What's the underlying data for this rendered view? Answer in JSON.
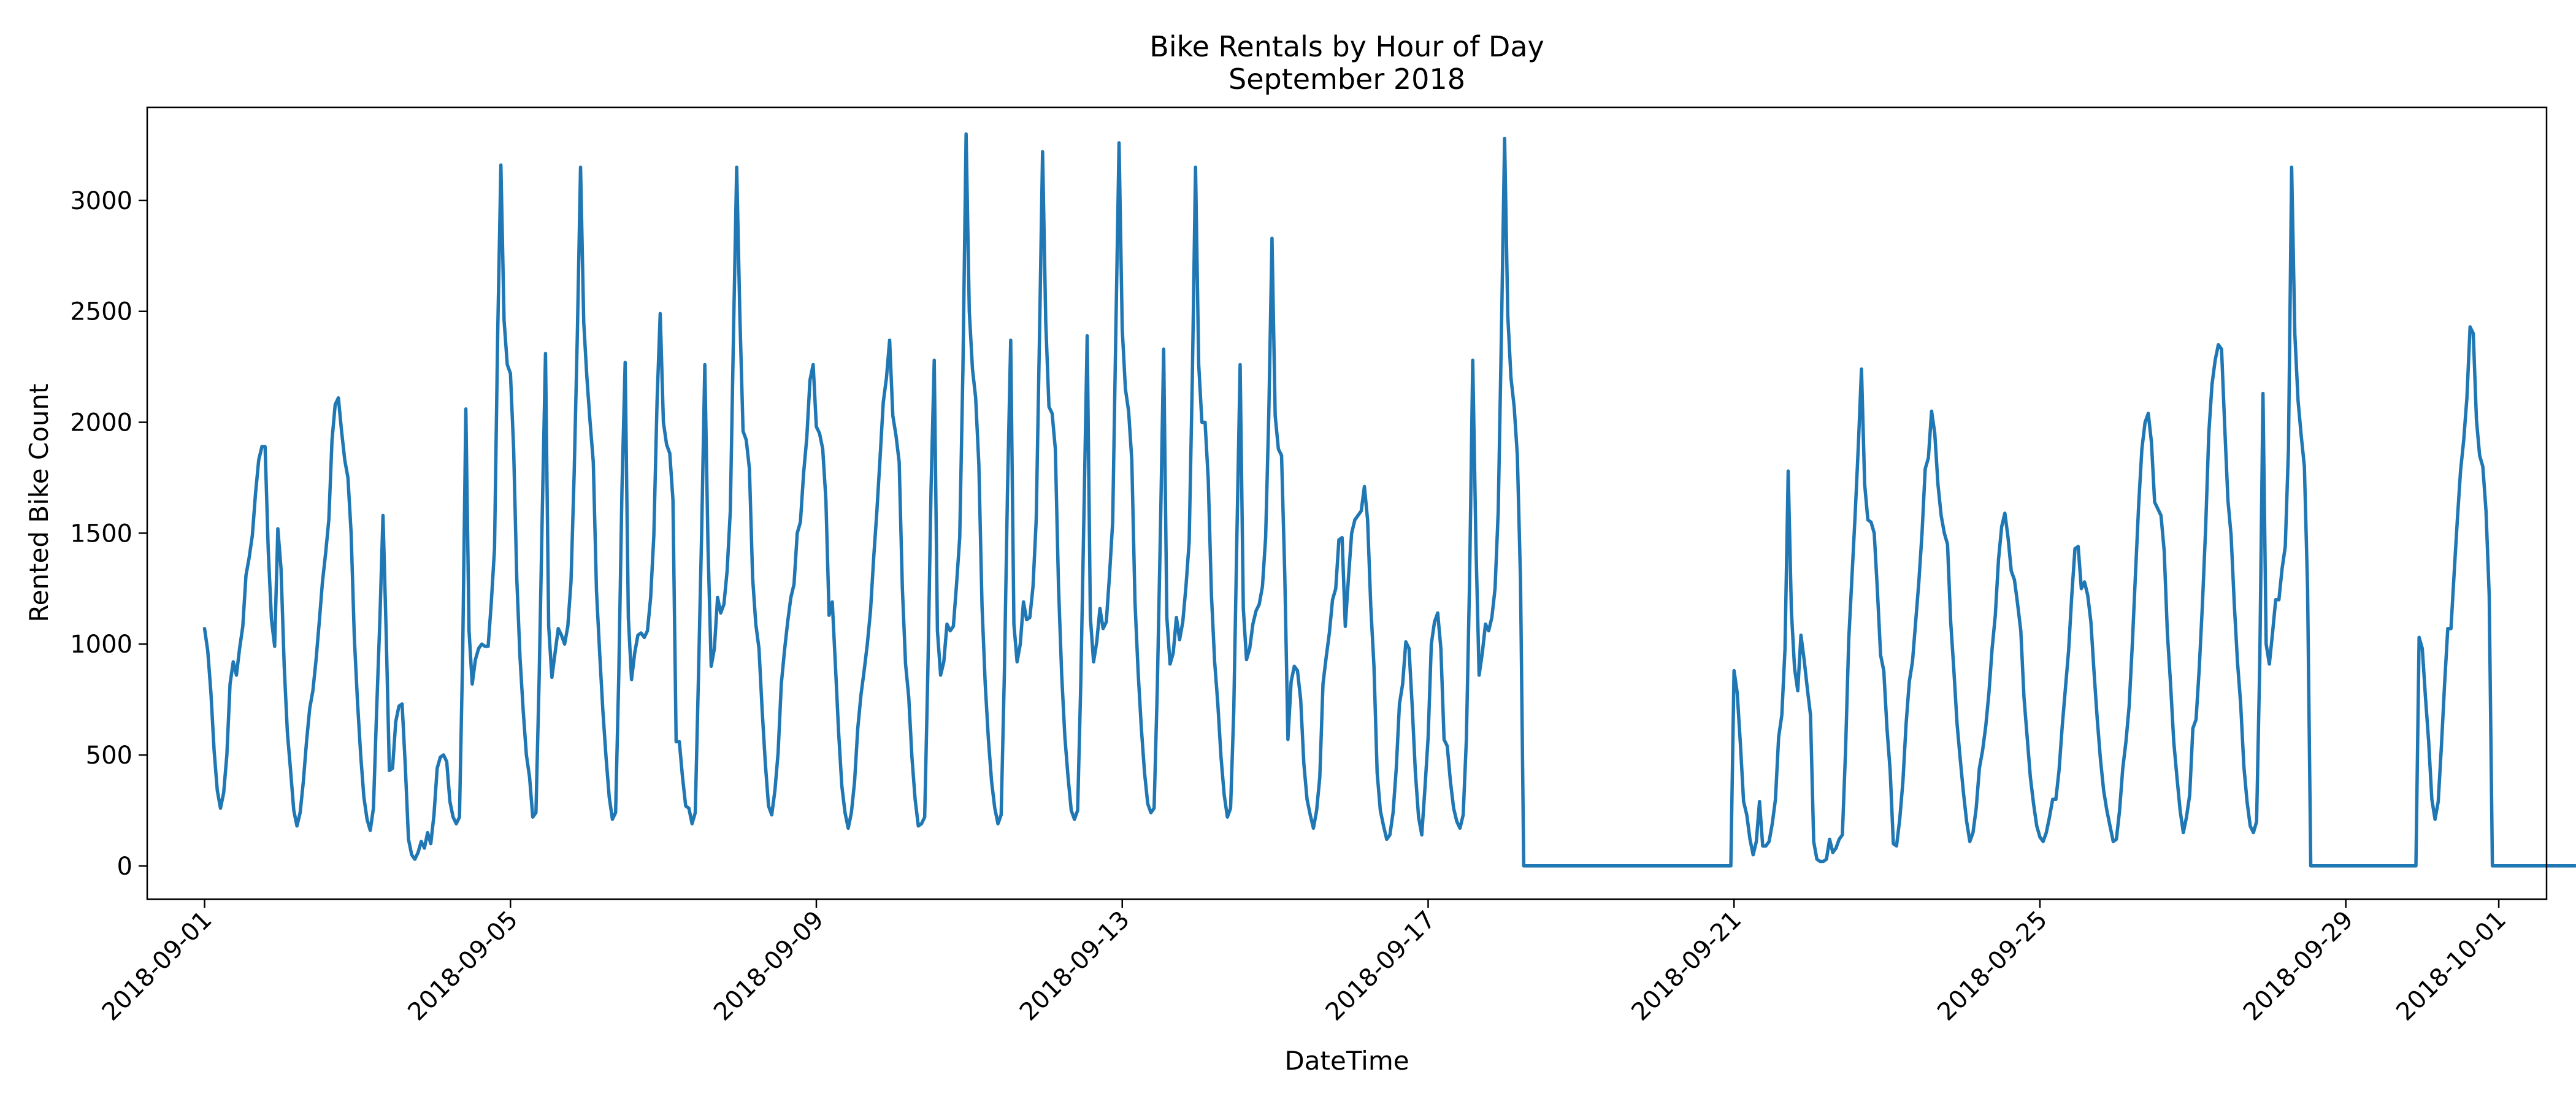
{
  "chart_data": {
    "type": "line",
    "title": "Bike Rentals by Hour of Day",
    "subtitle": "September 2018",
    "xlabel": "DateTime",
    "ylabel": "Rented Bike Count",
    "x_range": [
      "2018-08-31T06:00",
      "2018-10-01T15:00"
    ],
    "ylim": [
      -150,
      3420
    ],
    "x_ticks": [
      "2018-09-01",
      "2018-09-05",
      "2018-09-09",
      "2018-09-13",
      "2018-09-17",
      "2018-09-21",
      "2018-09-25",
      "2018-09-29",
      "2018-10-01"
    ],
    "y_ticks": [
      0,
      500,
      1000,
      1500,
      2000,
      2500,
      3000
    ],
    "grid": false,
    "legend": "none",
    "line_color": "#1f77b4",
    "series": [
      {
        "x_start": "2018-09-01T00:00",
        "interval_hours": 1,
        "values": [
          1070,
          970,
          780,
          520,
          340,
          260,
          330,
          500,
          820,
          920,
          860,
          980,
          1080,
          1310,
          1390,
          1490,
          1680,
          1830,
          1890,
          1890,
          1420,
          1110,
          990,
          1520,
          1340,
          900,
          600,
          430,
          250,
          180,
          240,
          380,
          560,
          710,
          790,
          930,
          1100,
          1280,
          1410,
          1560,
          1920,
          2080,
          2110,
          1960,
          1830,
          1750,
          1500,
          1030,
          740,
          500,
          310,
          210,
          160,
          260,
          700,
          1100,
          1580,
          1050,
          430,
          440,
          650,
          720,
          730,
          450,
          120,
          50,
          30,
          60,
          110,
          80,
          150,
          100,
          230,
          440,
          490,
          500,
          470,
          290,
          220,
          190,
          220,
          950,
          2060,
          1060,
          820,
          930,
          980,
          1000,
          990,
          990,
          1190,
          1430,
          2400,
          3160,
          2460,
          2260,
          2220,
          1880,
          1290,
          940,
          700,
          500,
          400,
          220,
          240,
          840,
          1600,
          2310,
          1080,
          850,
          960,
          1070,
          1040,
          1000,
          1080,
          1280,
          1770,
          2400,
          3150,
          2450,
          2200,
          2000,
          1820,
          1240,
          960,
          700,
          490,
          310,
          210,
          240,
          860,
          1700,
          2270,
          1120,
          840,
          960,
          1040,
          1050,
          1030,
          1060,
          1210,
          1490,
          2090,
          2490,
          2000,
          1900,
          1860,
          1650,
          560,
          560,
          400,
          270,
          260,
          190,
          240,
          850,
          1500,
          2260,
          1440,
          900,
          980,
          1210,
          1140,
          1180,
          1330,
          1600,
          2400,
          3150,
          2480,
          1960,
          1920,
          1790,
          1300,
          1090,
          980,
          700,
          460,
          270,
          230,
          340,
          510,
          820,
          970,
          1100,
          1210,
          1270,
          1500,
          1550,
          1770,
          1930,
          2190,
          2260,
          1980,
          1950,
          1880,
          1650,
          1130,
          1190,
          900,
          600,
          360,
          240,
          170,
          240,
          380,
          620,
          770,
          880,
          1000,
          1150,
          1390,
          1600,
          1840,
          2090,
          2200,
          2370,
          2030,
          1940,
          1820,
          1250,
          910,
          760,
          490,
          300,
          180,
          190,
          220,
          880,
          1700,
          2280,
          1060,
          860,
          920,
          1090,
          1060,
          1080,
          1270,
          1480,
          2240,
          3300,
          2500,
          2240,
          2110,
          1810,
          1170,
          820,
          570,
          380,
          260,
          190,
          230,
          860,
          1700,
          2370,
          1090,
          920,
          1000,
          1190,
          1110,
          1120,
          1260,
          1560,
          2360,
          3220,
          2450,
          2070,
          2040,
          1880,
          1260,
          860,
          580,
          400,
          250,
          210,
          250,
          830,
          1600,
          2390,
          1120,
          920,
          1010,
          1160,
          1070,
          1100,
          1310,
          1550,
          2420,
          3260,
          2420,
          2150,
          2050,
          1830,
          1190,
          870,
          620,
          420,
          280,
          240,
          260,
          800,
          1520,
          2330,
          1120,
          910,
          960,
          1120,
          1020,
          1100,
          1260,
          1460,
          2200,
          3150,
          2260,
          2000,
          2000,
          1740,
          1220,
          920,
          730,
          490,
          320,
          220,
          260,
          700,
          1500,
          2260,
          1160,
          930,
          980,
          1090,
          1150,
          1180,
          1260,
          1480,
          2040,
          2830,
          2030,
          1880,
          1850,
          1320,
          570,
          830,
          900,
          880,
          750,
          460,
          300,
          230,
          170,
          250,
          400,
          820,
          940,
          1050,
          1200,
          1250,
          1470,
          1480,
          1080,
          1300,
          1500,
          1560,
          1580,
          1600,
          1710,
          1560,
          1170,
          900,
          420,
          250,
          180,
          120,
          140,
          240,
          440,
          730,
          820,
          1010,
          980,
          720,
          420,
          220,
          140,
          350,
          580,
          1000,
          1100,
          1140,
          980,
          570,
          540,
          380,
          260,
          200,
          170,
          230,
          570,
          1280,
          2280,
          1450,
          860,
          960,
          1090,
          1060,
          1120,
          1250,
          1600,
          2400,
          3280,
          2480,
          2200,
          2070,
          1850,
          1280,
          0,
          0,
          0,
          0,
          0,
          0,
          0,
          0,
          0,
          0,
          0,
          0,
          0,
          0,
          0,
          0,
          0,
          0,
          0,
          0,
          0,
          0,
          0,
          0,
          0,
          0,
          0,
          0,
          0,
          0,
          0,
          0,
          0,
          0,
          0,
          0,
          0,
          0,
          0,
          0,
          0,
          0,
          0,
          0,
          0,
          0,
          0,
          0,
          0,
          0,
          0,
          0,
          0,
          0,
          0,
          0,
          0,
          0,
          0,
          0,
          0,
          0,
          0,
          0,
          0,
          0,
          880,
          780,
          550,
          290,
          230,
          120,
          50,
          110,
          290,
          90,
          90,
          110,
          190,
          300,
          580,
          680,
          980,
          1780,
          1150,
          890,
          790,
          1040,
          930,
          800,
          680,
          110,
          30,
          20,
          20,
          30,
          120,
          60,
          80,
          120,
          140,
          520,
          1020,
          1300,
          1580,
          1890,
          2240,
          1720,
          1560,
          1550,
          1500,
          1240,
          950,
          880,
          620,
          430,
          100,
          90,
          210,
          380,
          640,
          830,
          920,
          1100,
          1280,
          1500,
          1790,
          1840,
          2050,
          1950,
          1720,
          1580,
          1500,
          1450,
          1100,
          880,
          640,
          480,
          330,
          200,
          110,
          150,
          260,
          440,
          520,
          630,
          780,
          980,
          1130,
          1380,
          1530,
          1590,
          1480,
          1330,
          1290,
          1180,
          1060,
          760,
          580,
          400,
          280,
          180,
          130,
          110,
          150,
          220,
          300,
          300,
          430,
          630,
          800,
          970,
          1220,
          1430,
          1440,
          1250,
          1280,
          1220,
          1100,
          870,
          660,
          480,
          340,
          250,
          180,
          110,
          120,
          250,
          440,
          560,
          720,
          1000,
          1320,
          1630,
          1880,
          2000,
          2040,
          1910,
          1640,
          1610,
          1580,
          1420,
          1050,
          820,
          560,
          400,
          250,
          150,
          220,
          320,
          620,
          660,
          890,
          1180,
          1520,
          1950,
          2170,
          2280,
          2350,
          2330,
          1980,
          1650,
          1490,
          1180,
          920,
          730,
          450,
          290,
          180,
          150,
          200,
          920,
          2130,
          1000,
          910,
          1050,
          1200,
          1200,
          1340,
          1440,
          1880,
          3150,
          2400,
          2100,
          1940,
          1800,
          1250,
          0,
          0,
          0,
          0,
          0,
          0,
          0,
          0,
          0,
          0,
          0,
          0,
          0,
          0,
          0,
          0,
          0,
          0,
          0,
          0,
          0,
          0,
          0,
          0,
          0,
          0,
          0,
          0,
          0,
          0,
          0,
          0,
          0,
          0,
          1030,
          980,
          760,
          560,
          300,
          210,
          290,
          540,
          820,
          1070,
          1070,
          1320,
          1560,
          1780,
          1920,
          2110,
          2430,
          2400,
          2010,
          1850,
          1800,
          1600,
          1220,
          0,
          0,
          0,
          0,
          0,
          0,
          0,
          0,
          0,
          0,
          0,
          0,
          0,
          0,
          0,
          0,
          0,
          0,
          0,
          0,
          0,
          0,
          0,
          0,
          0,
          0,
          0
        ]
      }
    ]
  }
}
